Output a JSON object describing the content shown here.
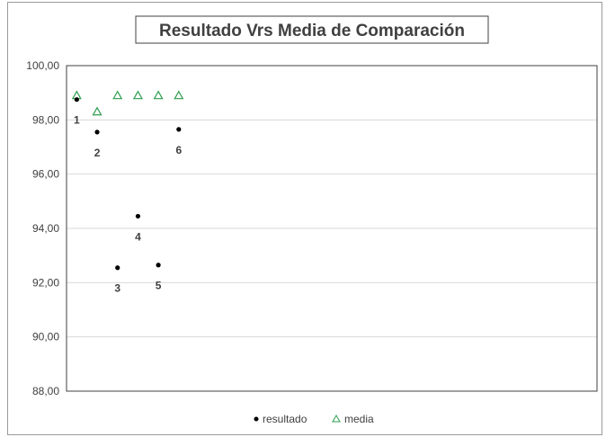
{
  "chart_data": {
    "type": "scatter",
    "title": "Resultado Vrs Media de Comparación",
    "xlabel": "",
    "ylabel": "",
    "ylim": [
      88,
      100
    ],
    "xlim": [
      0.5,
      26.5
    ],
    "y_ticks": [
      "100,00",
      "98,00",
      "96,00",
      "94,00",
      "92,00",
      "90,00",
      "88,00"
    ],
    "y_tick_values": [
      100,
      98,
      96,
      94,
      92,
      90,
      88
    ],
    "grid": true,
    "legend_position": "bottom",
    "series": [
      {
        "name": "resultado",
        "marker": "circle",
        "color": "#000000",
        "x": [
          1,
          2,
          3,
          4,
          5,
          6
        ],
        "y": [
          98.75,
          97.55,
          92.55,
          94.45,
          92.65,
          97.65
        ],
        "labels": [
          "1",
          "2",
          "3",
          "4",
          "5",
          "6"
        ]
      },
      {
        "name": "media",
        "marker": "triangle",
        "color": "#2e9e4f",
        "x": [
          1,
          2,
          3,
          4,
          5,
          6
        ],
        "y": [
          98.9,
          98.3,
          98.9,
          98.9,
          98.9,
          98.9
        ]
      }
    ]
  }
}
